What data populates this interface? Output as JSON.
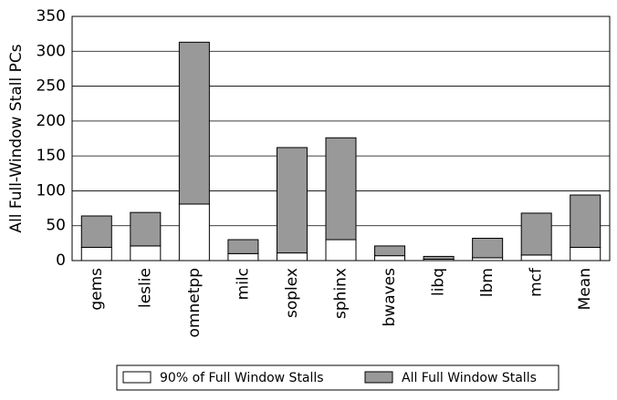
{
  "chart_data": {
    "type": "stacked_bar",
    "y_label": "All Full-Window Stall PCs",
    "categories": [
      "gems",
      "leslie",
      "omnetpp",
      "milc",
      "soplex",
      "sphinx",
      "bwaves",
      "libq",
      "lbm",
      "mcf",
      "Mean"
    ],
    "series": [
      {
        "name": "90% of Full Window Stalls",
        "color": "#ffffff",
        "values": [
          19,
          21,
          81,
          10,
          11,
          30,
          7,
          2,
          4,
          8,
          19
        ]
      },
      {
        "name": "All Full Window Stalls",
        "color": "#999999",
        "values": [
          45,
          48,
          232,
          20,
          151,
          146,
          14,
          4,
          28,
          60,
          75
        ]
      }
    ],
    "ylim": [
      0,
      350
    ],
    "yticks": [
      0,
      50,
      100,
      150,
      200,
      250,
      300,
      350
    ],
    "grid": true
  }
}
